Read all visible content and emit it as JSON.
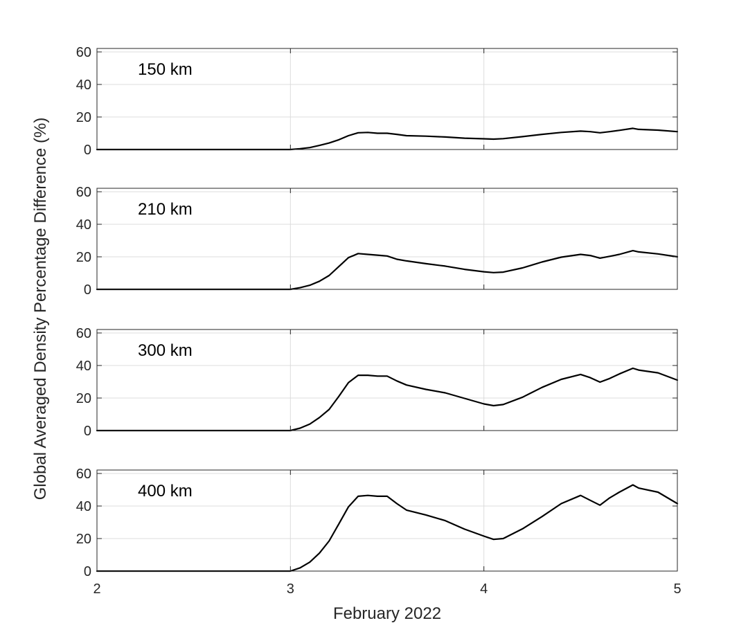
{
  "figure": {
    "ylabel": "Global Averaged Density Percentage Difference (%)",
    "xlabel": "February 2022"
  },
  "chart_data": [
    {
      "type": "line",
      "panel_label": "150 km",
      "ylim": [
        0,
        60
      ],
      "yticks": [
        0,
        20,
        40,
        60
      ],
      "xlim": [
        2,
        5
      ],
      "xticks": [
        2,
        3,
        4,
        5
      ],
      "grid": true,
      "series": [
        {
          "x": [
            2.0,
            3.0,
            3.05,
            3.1,
            3.15,
            3.2,
            3.25,
            3.3,
            3.35,
            3.4,
            3.45,
            3.5,
            3.55,
            3.6,
            3.7,
            3.8,
            3.9,
            4.0,
            4.05,
            4.1,
            4.2,
            4.3,
            4.4,
            4.5,
            4.55,
            4.6,
            4.65,
            4.7,
            4.77,
            4.8,
            4.9,
            5.0
          ],
          "y": [
            0,
            0,
            0.5,
            1.2,
            2.5,
            4,
            6,
            8.5,
            10.3,
            10.5,
            10,
            10,
            9.3,
            8.5,
            8.2,
            7.7,
            7.0,
            6.6,
            6.4,
            6.7,
            7.9,
            9.3,
            10.5,
            11.3,
            11,
            10.3,
            11,
            11.8,
            13,
            12.4,
            11.9,
            11
          ]
        }
      ]
    },
    {
      "type": "line",
      "panel_label": "210 km",
      "ylim": [
        0,
        60
      ],
      "yticks": [
        0,
        20,
        40,
        60
      ],
      "xlim": [
        2,
        5
      ],
      "xticks": [
        2,
        3,
        4,
        5
      ],
      "grid": true,
      "series": [
        {
          "x": [
            2.0,
            3.0,
            3.05,
            3.1,
            3.15,
            3.2,
            3.25,
            3.3,
            3.35,
            3.4,
            3.45,
            3.5,
            3.55,
            3.6,
            3.7,
            3.8,
            3.9,
            4.0,
            4.05,
            4.1,
            4.2,
            4.3,
            4.4,
            4.5,
            4.55,
            4.6,
            4.65,
            4.7,
            4.77,
            4.8,
            4.9,
            5.0
          ],
          "y": [
            0,
            0,
            1,
            2.5,
            5,
            8.5,
            14,
            19.5,
            22,
            21.5,
            21,
            20.5,
            18.5,
            17.5,
            15.8,
            14.3,
            12.3,
            10.8,
            10.3,
            10.6,
            13.2,
            16.8,
            19.8,
            21.5,
            20.8,
            19.2,
            20.3,
            21.5,
            23.8,
            23,
            21.8,
            20
          ]
        }
      ]
    },
    {
      "type": "line",
      "panel_label": "300 km",
      "ylim": [
        0,
        60
      ],
      "yticks": [
        0,
        20,
        40,
        60
      ],
      "xlim": [
        2,
        5
      ],
      "xticks": [
        2,
        3,
        4,
        5
      ],
      "grid": true,
      "series": [
        {
          "x": [
            2.0,
            3.0,
            3.05,
            3.1,
            3.15,
            3.2,
            3.25,
            3.3,
            3.35,
            3.4,
            3.45,
            3.5,
            3.55,
            3.6,
            3.7,
            3.8,
            3.9,
            4.0,
            4.05,
            4.1,
            4.2,
            4.3,
            4.4,
            4.5,
            4.55,
            4.6,
            4.65,
            4.7,
            4.77,
            4.8,
            4.9,
            5.0
          ],
          "y": [
            0,
            0,
            1.5,
            4,
            8,
            13,
            21,
            29.5,
            34,
            34,
            33.5,
            33.5,
            30.5,
            28,
            25.3,
            23.2,
            19.8,
            16.4,
            15.3,
            16,
            20.5,
            26.5,
            31.5,
            34.5,
            32.5,
            29.8,
            32,
            34.8,
            38.3,
            37.2,
            35.5,
            31
          ]
        }
      ]
    },
    {
      "type": "line",
      "panel_label": "400 km",
      "ylim": [
        0,
        60
      ],
      "yticks": [
        0,
        20,
        40,
        60
      ],
      "xlim": [
        2,
        5
      ],
      "xticks": [
        2,
        3,
        4,
        5
      ],
      "xticklabels": [
        "2",
        "3",
        "4",
        "5"
      ],
      "grid": true,
      "series": [
        {
          "x": [
            2.0,
            3.0,
            3.05,
            3.1,
            3.15,
            3.2,
            3.25,
            3.3,
            3.35,
            3.4,
            3.45,
            3.5,
            3.55,
            3.6,
            3.7,
            3.8,
            3.9,
            4.0,
            4.05,
            4.1,
            4.2,
            4.3,
            4.4,
            4.5,
            4.55,
            4.6,
            4.65,
            4.7,
            4.77,
            4.8,
            4.9,
            5.0
          ],
          "y": [
            0,
            0,
            2,
            5.5,
            11,
            18.5,
            29,
            39.5,
            46,
            46.5,
            46,
            46,
            41.5,
            37.5,
            34.5,
            31,
            25.8,
            21.5,
            19.5,
            20,
            26,
            33.5,
            41.5,
            46.5,
            43.5,
            40.5,
            45,
            48.5,
            53,
            51,
            48.5,
            41.5
          ]
        }
      ]
    }
  ]
}
